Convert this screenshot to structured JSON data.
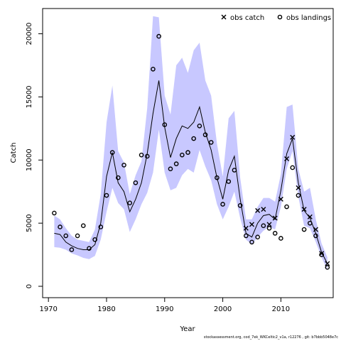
{
  "chart_data": {
    "type": "line",
    "title": "",
    "xlabel": "Year",
    "ylabel": "Catch",
    "xlim": [
      1969.0,
      2019.0
    ],
    "ylim": [
      -900,
      22000
    ],
    "xticks": [
      1970,
      1980,
      1990,
      2000,
      2010
    ],
    "yticks": [
      0,
      5000,
      10000,
      15000,
      20000
    ],
    "grid": false,
    "legend_position": "top-right",
    "colors": {
      "band": "#c8c8ff",
      "line": "#000000",
      "points": "#000000"
    },
    "legend": [
      {
        "label": "obs catch",
        "marker": "x"
      },
      {
        "label": "obs landings",
        "marker": "o"
      }
    ],
    "series": [
      {
        "name": "",
        "kind": "estimate-with-band",
        "x": [
          1971,
          1972,
          1973,
          1974,
          1975,
          1976,
          1977,
          1978,
          1979,
          1980,
          1981,
          1982,
          1983,
          1984,
          1985,
          1986,
          1987,
          1988,
          1989,
          1990,
          1991,
          1992,
          1993,
          1994,
          1995,
          1996,
          1997,
          1998,
          1999,
          2000,
          2001,
          2002,
          2003,
          2004,
          2005,
          2006,
          2007,
          2008,
          2009,
          2010,
          2011,
          2012,
          2013,
          2014,
          2015,
          2016,
          2017,
          2018
        ],
        "y": [
          4200,
          4100,
          3500,
          3200,
          3000,
          2900,
          2900,
          3300,
          5000,
          8700,
          10600,
          8200,
          7500,
          5900,
          6900,
          8200,
          10500,
          13700,
          16300,
          12600,
          10200,
          11700,
          12700,
          12500,
          13000,
          14200,
          12200,
          10800,
          8600,
          6900,
          9200,
          10300,
          6900,
          4200,
          3900,
          5000,
          5600,
          5700,
          5300,
          7600,
          10500,
          11700,
          8200,
          6000,
          5400,
          4200,
          2700,
          1800
        ],
        "lower": [
          3100,
          3050,
          2900,
          2600,
          2450,
          2250,
          2150,
          2400,
          3700,
          5900,
          7800,
          6600,
          6100,
          4300,
          5300,
          6500,
          7400,
          9000,
          12400,
          9000,
          7600,
          7800,
          8800,
          9300,
          9000,
          10800,
          9500,
          8400,
          6500,
          5300,
          6300,
          7500,
          5400,
          3700,
          3300,
          3900,
          4400,
          4700,
          4500,
          6300,
          9300,
          10700,
          7100,
          4800,
          4600,
          3500,
          2300,
          1300
        ],
        "upper": [
          5600,
          5300,
          4600,
          4000,
          3700,
          3600,
          3500,
          4500,
          7300,
          13000,
          15900,
          10700,
          9800,
          7300,
          8800,
          9900,
          14100,
          21400,
          21300,
          15100,
          13600,
          17500,
          18100,
          16900,
          18700,
          19300,
          16300,
          15100,
          11300,
          8700,
          13300,
          13900,
          8600,
          5300,
          5300,
          6300,
          7000,
          7000,
          6700,
          8900,
          14200,
          14400,
          9300,
          7500,
          7800,
          5300,
          3400,
          2300
        ]
      },
      {
        "name": "obs catch",
        "marker": "x",
        "x": [
          2004,
          2005,
          2006,
          2007,
          2008,
          2009,
          2010,
          2011,
          2012,
          2013,
          2014,
          2015,
          2016,
          2017,
          2018
        ],
        "y": [
          4600,
          4900,
          6000,
          6100,
          4900,
          5400,
          6900,
          10100,
          11800,
          7800,
          6100,
          5500,
          4500,
          2600,
          1800
        ]
      },
      {
        "name": "obs landings",
        "marker": "o",
        "x": [
          1971,
          1972,
          1973,
          1974,
          1975,
          1976,
          1977,
          1978,
          1979,
          1980,
          1981,
          1982,
          1983,
          1984,
          1985,
          1986,
          1987,
          1988,
          1989,
          1990,
          1991,
          1992,
          1993,
          1994,
          1995,
          1996,
          1997,
          1998,
          1999,
          2000,
          2001,
          2002,
          2003,
          2004,
          2005,
          2006,
          2007,
          2008,
          2009,
          2010,
          2011,
          2012,
          2013,
          2014,
          2015,
          2016,
          2017,
          2018
        ],
        "y": [
          5800,
          4700,
          4000,
          2900,
          4000,
          4800,
          3000,
          3700,
          4700,
          7200,
          10600,
          8600,
          9600,
          6600,
          8200,
          10400,
          10300,
          17200,
          19800,
          12800,
          9300,
          9700,
          10400,
          10600,
          11700,
          12700,
          12000,
          11400,
          8600,
          6500,
          8300,
          9200,
          6400,
          4000,
          3500,
          3900,
          4800,
          4600,
          4200,
          3800,
          6300,
          9400,
          7200,
          4500,
          5000,
          4000,
          2500,
          1500
        ]
      }
    ]
  },
  "footer": "stockassessment.org, cod_7ek_WKCeltic2_v1a, r12276 , git: b7bbb5048e7c"
}
